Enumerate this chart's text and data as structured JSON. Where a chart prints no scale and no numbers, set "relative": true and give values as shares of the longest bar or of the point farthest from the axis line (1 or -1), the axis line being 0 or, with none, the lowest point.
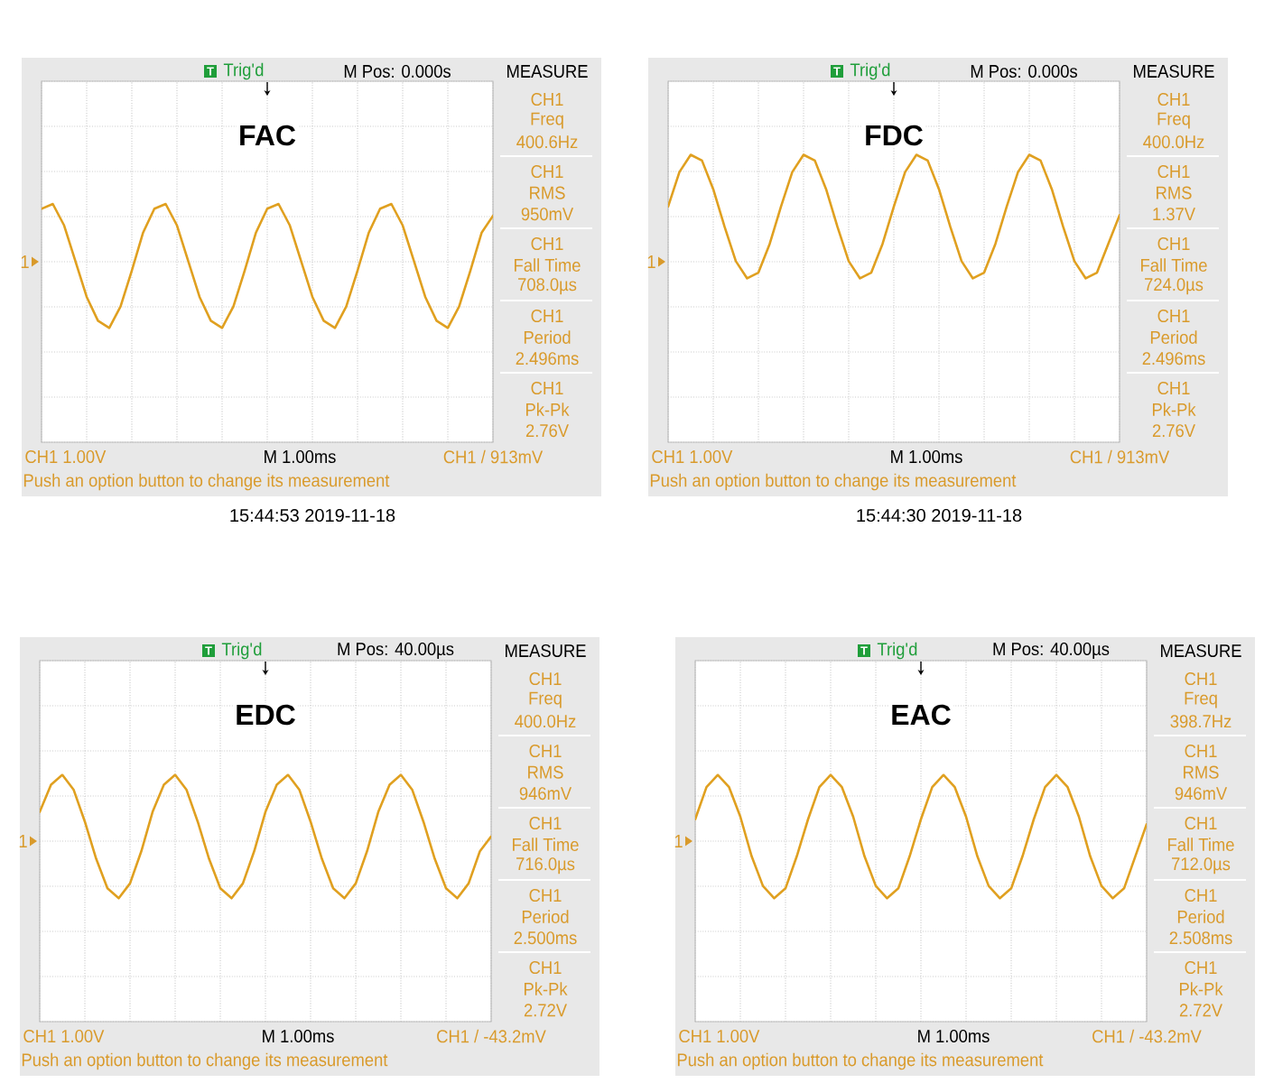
{
  "chart_data": [
    {
      "type": "line",
      "title": "FAC",
      "relative": true,
      "grid": true,
      "color": "#e0a020",
      "categories": [
        null,
        null,
        null,
        null,
        null,
        null,
        null,
        null,
        null,
        null,
        null,
        null,
        null,
        null,
        null,
        null,
        null,
        null,
        null,
        null,
        null,
        null,
        null,
        null,
        null,
        null,
        null,
        null,
        null,
        null,
        null,
        null,
        null,
        null,
        null,
        null,
        null,
        null,
        null,
        null,
        null
      ],
      "values": [
        0.98,
        1.0,
        0.91,
        0.76,
        0.61,
        0.51,
        0.48,
        0.57,
        0.72,
        0.88,
        0.98,
        1.0,
        0.91,
        0.76,
        0.61,
        0.51,
        0.48,
        0.57,
        0.72,
        0.88,
        0.98,
        1.0,
        0.91,
        0.76,
        0.61,
        0.51,
        0.48,
        0.57,
        0.72,
        0.88,
        0.98,
        1.0,
        0.91,
        0.76,
        0.61,
        0.51,
        0.48,
        0.57,
        0.72,
        0.88,
        0.95
      ],
      "annotations": [
        "T",
        "Trig'd",
        "M Pos: 0.000s",
        "MEASURE",
        "CH1",
        "Freq",
        "400.6Hz",
        "CH1",
        "RMS",
        "950mV",
        "CH1",
        "Fall Time",
        "708.0µs",
        "CH1",
        "Period",
        "2.496ms",
        "CH1",
        "Pk-Pk",
        "2.76V",
        "1",
        "CH1 1.00V",
        "M 1.00ms",
        "CH1 / 913mV",
        "Push an option button to change its measurement",
        "15:44:53 2019-11-18"
      ]
    },
    {
      "type": "line",
      "title": "FDC",
      "relative": true,
      "grid": true,
      "color": "#e0a020",
      "categories": [
        null,
        null,
        null,
        null,
        null,
        null,
        null,
        null,
        null,
        null,
        null,
        null,
        null,
        null,
        null,
        null,
        null,
        null,
        null,
        null,
        null,
        null,
        null,
        null,
        null,
        null,
        null,
        null,
        null,
        null,
        null,
        null,
        null,
        null,
        null,
        null,
        null,
        null,
        null,
        null,
        null
      ],
      "values": [
        0.82,
        0.94,
        1.0,
        0.98,
        0.88,
        0.75,
        0.63,
        0.57,
        0.59,
        0.69,
        0.82,
        0.94,
        1.0,
        0.98,
        0.88,
        0.75,
        0.63,
        0.57,
        0.59,
        0.69,
        0.82,
        0.94,
        1.0,
        0.98,
        0.88,
        0.75,
        0.63,
        0.57,
        0.59,
        0.69,
        0.82,
        0.94,
        1.0,
        0.98,
        0.88,
        0.75,
        0.63,
        0.57,
        0.59,
        0.69,
        0.79
      ],
      "annotations": [
        "T",
        "Trig'd",
        "M Pos: 0.000s",
        "MEASURE",
        "CH1",
        "Freq",
        "400.0Hz",
        "CH1",
        "RMS",
        "1.37V",
        "CH1",
        "Fall Time",
        "724.0µs",
        "CH1",
        "Period",
        "2.496ms",
        "CH1",
        "Pk-Pk",
        "2.76V",
        "1",
        "CH1 1.00V",
        "M 1.00ms",
        "CH1 / 913mV",
        "Push an option button to change its measurement",
        "15:44:30 2019-11-18"
      ]
    },
    {
      "type": "line",
      "title": "EDC",
      "relative": true,
      "grid": true,
      "color": "#e0a020",
      "categories": [
        null,
        null,
        null,
        null,
        null,
        null,
        null,
        null,
        null,
        null,
        null,
        null,
        null,
        null,
        null,
        null,
        null,
        null,
        null,
        null,
        null,
        null,
        null,
        null,
        null,
        null,
        null,
        null,
        null,
        null,
        null,
        null,
        null,
        null,
        null,
        null,
        null,
        null,
        null,
        null,
        null
      ],
      "values": [
        0.85,
        0.96,
        1.0,
        0.94,
        0.81,
        0.66,
        0.54,
        0.5,
        0.56,
        0.69,
        0.85,
        0.96,
        1.0,
        0.94,
        0.81,
        0.66,
        0.54,
        0.5,
        0.56,
        0.69,
        0.85,
        0.96,
        1.0,
        0.94,
        0.81,
        0.66,
        0.54,
        0.5,
        0.56,
        0.69,
        0.85,
        0.96,
        1.0,
        0.94,
        0.81,
        0.66,
        0.54,
        0.5,
        0.56,
        0.69,
        0.75
      ],
      "annotations": [
        "T",
        "Trig'd",
        "M Pos: 40.00µs",
        "MEASURE",
        "CH1",
        "Freq",
        "400.0Hz",
        "CH1",
        "RMS",
        "946mV",
        "CH1",
        "Fall Time",
        "716.0µs",
        "CH1",
        "Period",
        "2.500ms",
        "CH1",
        "Pk-Pk",
        "2.72V",
        "1",
        "CH1 1.00V",
        "M 1.00ms",
        "CH1 / -43.2mV",
        "Push an option button to change its measurement"
      ]
    },
    {
      "type": "line",
      "title": "EAC",
      "relative": true,
      "grid": true,
      "color": "#e0a020",
      "categories": [
        null,
        null,
        null,
        null,
        null,
        null,
        null,
        null,
        null,
        null,
        null,
        null,
        null,
        null,
        null,
        null,
        null,
        null,
        null,
        null,
        null,
        null,
        null,
        null,
        null,
        null,
        null,
        null,
        null,
        null,
        null,
        null,
        null,
        null,
        null,
        null,
        null,
        null,
        null,
        null,
        null
      ],
      "values": [
        0.82,
        0.95,
        1.0,
        0.95,
        0.83,
        0.67,
        0.55,
        0.5,
        0.54,
        0.67,
        0.82,
        0.95,
        1.0,
        0.95,
        0.83,
        0.67,
        0.55,
        0.5,
        0.54,
        0.67,
        0.82,
        0.95,
        1.0,
        0.95,
        0.83,
        0.67,
        0.55,
        0.5,
        0.54,
        0.67,
        0.82,
        0.95,
        1.0,
        0.95,
        0.83,
        0.67,
        0.55,
        0.5,
        0.54,
        0.67,
        0.8
      ],
      "annotations": [
        "T",
        "Trig'd",
        "M Pos: 40.00µs",
        "MEASURE",
        "CH1",
        "Freq",
        "398.7Hz",
        "CH1",
        "RMS",
        "946mV",
        "CH1",
        "Fall Time",
        "712.0µs",
        "CH1",
        "Period",
        "2.508ms",
        "CH1",
        "Pk-Pk",
        "2.72V",
        "1",
        "CH1 1.00V",
        "M 1.00ms",
        "CH1 / -43.2mV",
        "Push an option button to change its measurement"
      ]
    }
  ]
}
